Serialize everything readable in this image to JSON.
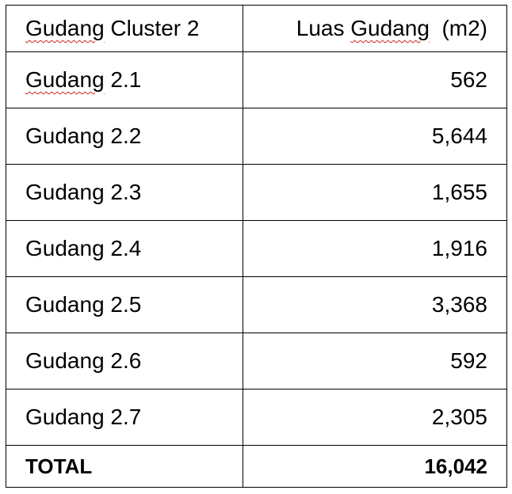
{
  "table": {
    "headers": {
      "cluster_word": "Gudang",
      "cluster_rest": " Cluster 2",
      "area_luas": "Luas",
      "area_gudang": "Gudang",
      "area_unit": "(m2)"
    },
    "rows": [
      {
        "prefix": "Gudang",
        "suffix": " 2.1",
        "value": "562"
      },
      {
        "prefix": "Gudang",
        "suffix": " 2.2",
        "value": "5,644"
      },
      {
        "prefix": "Gudang",
        "suffix": " 2.3",
        "value": "1,655"
      },
      {
        "prefix": "Gudang",
        "suffix": " 2.4",
        "value": "1,916"
      },
      {
        "prefix": "Gudang",
        "suffix": " 2.5",
        "value": "3,368"
      },
      {
        "prefix": "Gudang",
        "suffix": " 2.6",
        "value": "592"
      },
      {
        "prefix": "Gudang",
        "suffix": " 2.7",
        "value": "2,305"
      }
    ],
    "total": {
      "label": "TOTAL",
      "value": "16,042"
    }
  }
}
